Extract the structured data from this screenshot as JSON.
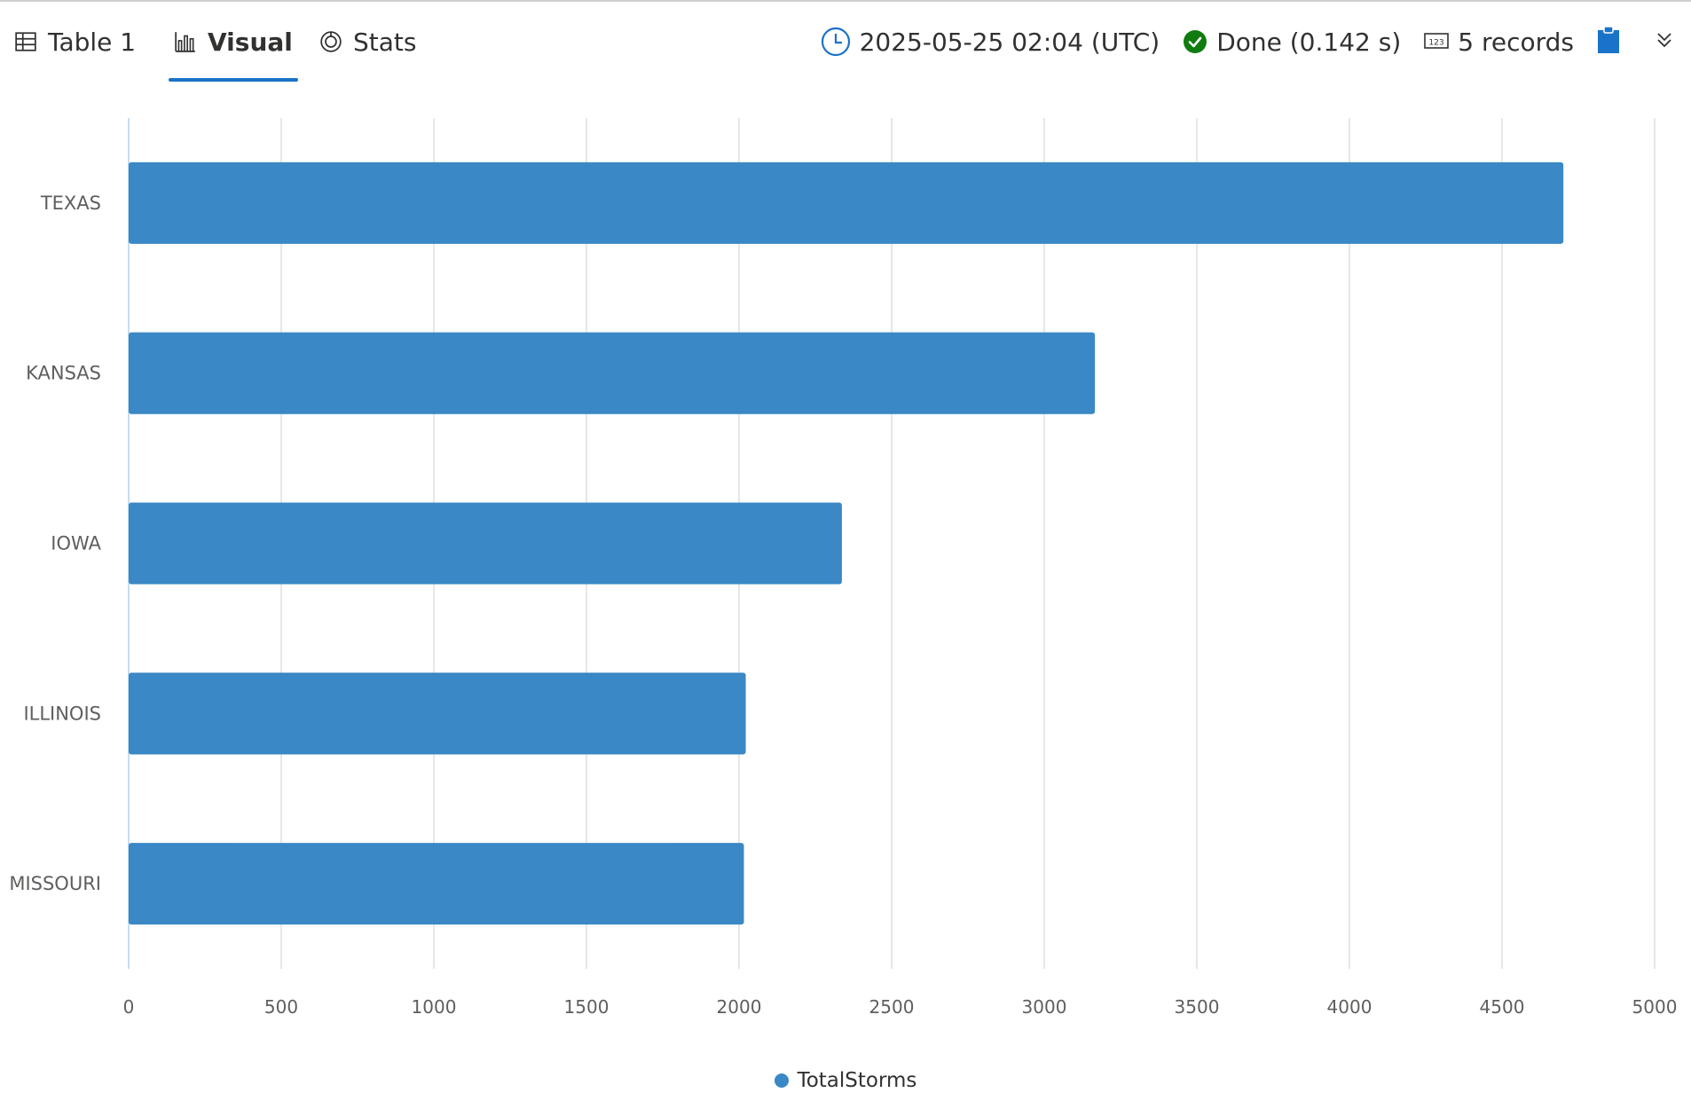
{
  "tabs": [
    {
      "label": "Table 1",
      "icon": "table-icon",
      "active": false
    },
    {
      "label": "Visual",
      "icon": "bar-chart-icon",
      "active": true
    },
    {
      "label": "Stats",
      "icon": "stats-icon",
      "active": false
    }
  ],
  "status": {
    "timestamp": "2025-05-25 02:04 (UTC)",
    "done": "Done (0.142 s)",
    "records": "5 records",
    "clock_icon": "clock-icon",
    "done_icon": "check-circle-icon",
    "records_icon": "number-icon",
    "copy_icon": "clipboard-icon",
    "expand_icon": "chevron-double-down-icon"
  },
  "colors": {
    "accent": "#1a73c8",
    "bar": "#3a88c5",
    "done": "#107c10",
    "grid": "#e1dfdd",
    "axis": "#c7dcef"
  },
  "chart_data": {
    "type": "bar",
    "orientation": "horizontal",
    "categories": [
      "TEXAS",
      "KANSAS",
      "IOWA",
      "ILLINOIS",
      "MISSOURI"
    ],
    "series": [
      {
        "name": "TotalStorms",
        "values": [
          4701,
          3166,
          2337,
          2022,
          2016
        ]
      }
    ],
    "xlim": [
      0,
      5000
    ],
    "xticks": [
      0,
      500,
      1000,
      1500,
      2000,
      2500,
      3000,
      3500,
      4000,
      4500,
      5000
    ],
    "grid": true,
    "legend_position": "bottom"
  }
}
